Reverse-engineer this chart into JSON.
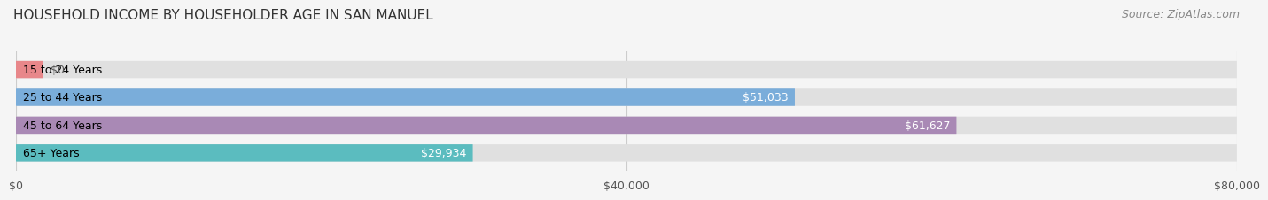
{
  "title": "HOUSEHOLD INCOME BY HOUSEHOLDER AGE IN SAN MANUEL",
  "source": "Source: ZipAtlas.com",
  "categories": [
    "15 to 24 Years",
    "25 to 44 Years",
    "45 to 64 Years",
    "65+ Years"
  ],
  "values": [
    0,
    51033,
    61627,
    29934
  ],
  "bar_colors": [
    "#e8878a",
    "#7aadda",
    "#a989b5",
    "#5bbcbf"
  ],
  "xlim": [
    0,
    80000
  ],
  "xtick_values": [
    0,
    40000,
    80000
  ],
  "xtick_labels": [
    "$0",
    "$40,000",
    "$80,000"
  ],
  "background_color": "#f5f5f5",
  "bar_background_color": "#e0e0e0",
  "title_fontsize": 11,
  "source_fontsize": 9,
  "label_fontsize": 9,
  "category_fontsize": 9,
  "tick_fontsize": 9
}
